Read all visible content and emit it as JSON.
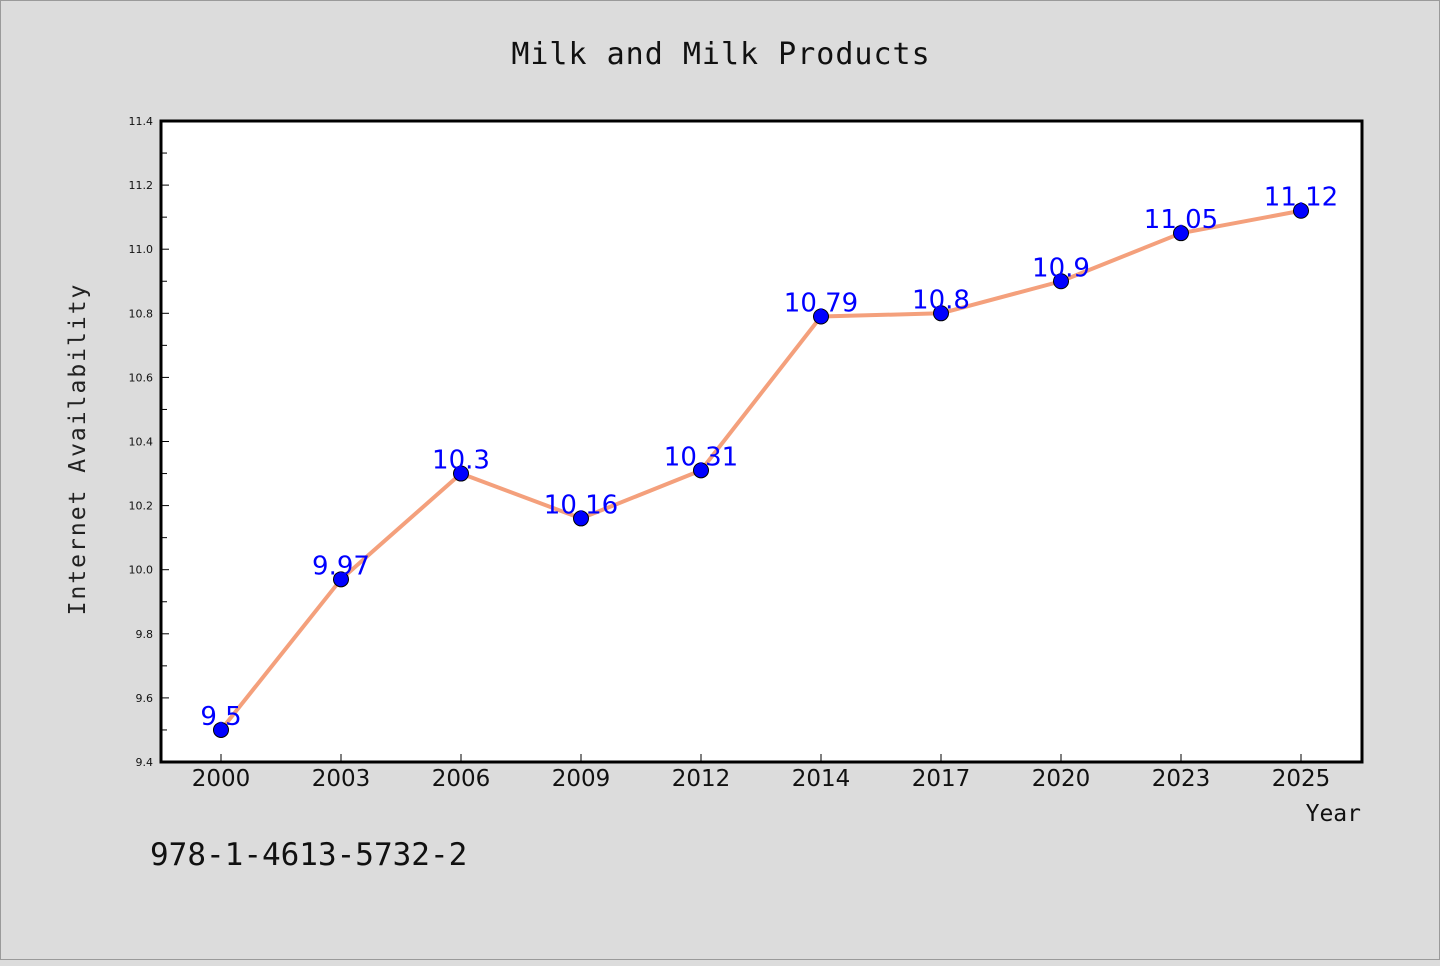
{
  "chart_data": {
    "type": "line",
    "title": "Milk and Milk Products",
    "xlabel": "Year",
    "ylabel": "Internet Availability",
    "categories": [
      "2000",
      "2003",
      "2006",
      "2009",
      "2012",
      "2014",
      "2017",
      "2020",
      "2023",
      "2025"
    ],
    "series": [
      {
        "values": [
          9.5,
          9.97,
          10.3,
          10.16,
          10.31,
          10.79,
          10.8,
          10.9,
          11.05,
          11.12
        ],
        "labels": [
          "9.5",
          "9.97",
          "10.3",
          "10.16",
          "10.31",
          "10.79",
          "10.8",
          "10.9",
          "11.05",
          "11.12"
        ]
      }
    ],
    "ylim": [
      9.4,
      11.4
    ],
    "yticks": [
      "9.4",
      "9.6",
      "9.8",
      "10.0",
      "10.2",
      "10.4",
      "10.6",
      "10.8",
      "11.0",
      "11.2",
      "11.4"
    ],
    "grid": false,
    "line_color": "#f4a07c",
    "marker_color": "#0000ff",
    "label_color": "#0000ff"
  },
  "footnote": "978-1-4613-5732-2",
  "colors": {
    "background": "#dcdcdc",
    "plot_background": "#ffffff"
  }
}
